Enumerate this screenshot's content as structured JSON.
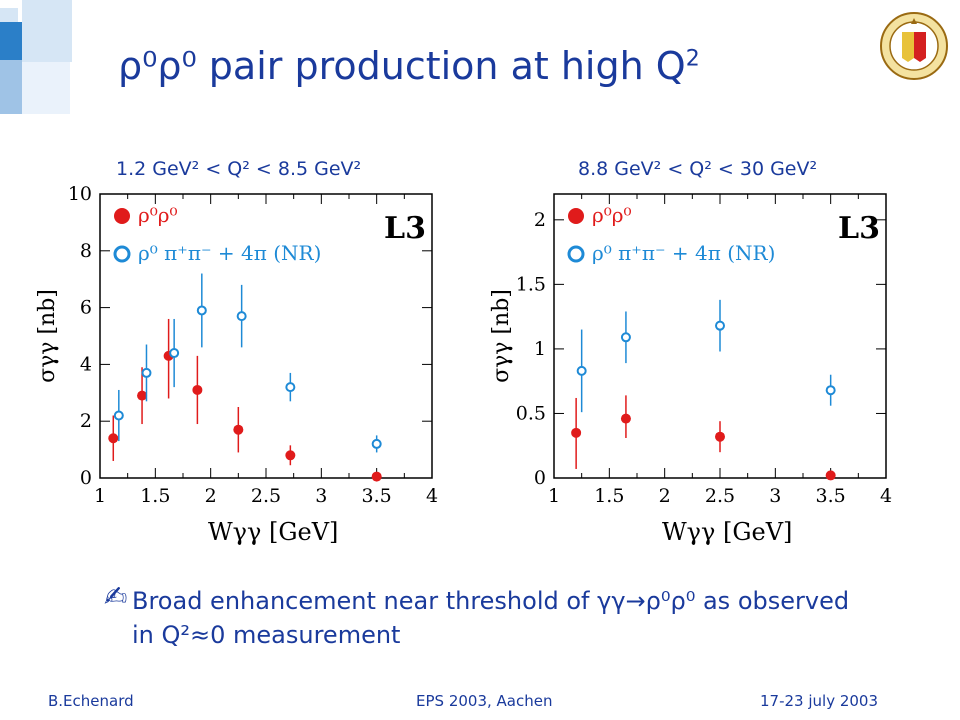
{
  "title": {
    "main": "ρ⁰ρ⁰ pair production at high Q",
    "sup": "2"
  },
  "panels": [
    {
      "range_label": "1.2 GeV² < Q² < 8.5 GeV²"
    },
    {
      "range_label": "8.8 GeV² < Q² < 30 GeV²"
    }
  ],
  "bullet": {
    "text": "Broad enhancement near threshold of γγ→ρ⁰ρ⁰ as observed in Q²≈0 measurement"
  },
  "footer": {
    "left": "B.Echenard",
    "center": "EPS 2003, Aachen",
    "right": "17-23 july 2003"
  },
  "colors": {
    "title": "#1a3a9c",
    "rho_rho": "#e01b1b",
    "rho_pipi": "#1e8ad6",
    "deco": [
      "#2b7fc8",
      "#9fc3e6",
      "#d6e6f5"
    ]
  },
  "icons": {
    "bullet": "pencil-icon",
    "logo": "university-seal-icon"
  },
  "chart_data": [
    {
      "type": "scatter",
      "experiment": "L3",
      "xlabel": "Wγγ [GeV]",
      "ylabel": "σγγ [nb]",
      "xlim": [
        1,
        4
      ],
      "ylim": [
        0,
        10
      ],
      "xticks": [
        "1",
        "1.5",
        "2",
        "2.5",
        "3",
        "3.5",
        "4"
      ],
      "xtick_values": [
        1,
        1.5,
        2,
        2.5,
        3,
        3.5,
        4
      ],
      "yticks": [
        "0",
        "2",
        "4",
        "6",
        "8",
        "10"
      ],
      "ytick_values": [
        0,
        2,
        4,
        6,
        8,
        10
      ],
      "series": [
        {
          "name": "ρ⁰ρ⁰",
          "marker": "filled",
          "color": "#e01b1b",
          "x": [
            1.12,
            1.38,
            1.62,
            1.88,
            2.25,
            2.72,
            3.5
          ],
          "y": [
            1.4,
            2.9,
            4.3,
            3.1,
            1.7,
            0.8,
            0.05
          ],
          "err_low": [
            0.8,
            1.0,
            1.5,
            1.2,
            0.8,
            0.35,
            0.05
          ],
          "err_high": [
            0.8,
            1.0,
            1.3,
            1.2,
            0.8,
            0.35,
            0.1
          ]
        },
        {
          "name": "ρ⁰ π⁺π⁻ + 4π (NR)",
          "marker": "open",
          "color": "#1e8ad6",
          "x": [
            1.17,
            1.42,
            1.67,
            1.92,
            2.28,
            2.72,
            3.5
          ],
          "y": [
            2.2,
            3.7,
            4.4,
            5.9,
            5.7,
            3.2,
            1.2
          ],
          "err_low": [
            0.9,
            1.0,
            1.2,
            1.3,
            1.1,
            0.5,
            0.3
          ],
          "err_high": [
            0.9,
            1.0,
            1.2,
            1.3,
            1.1,
            0.5,
            0.3
          ]
        }
      ]
    },
    {
      "type": "scatter",
      "experiment": "L3",
      "xlabel": "Wγγ [GeV]",
      "ylabel": "σγγ [nb]",
      "xlim": [
        1,
        4
      ],
      "ylim": [
        0,
        2.2
      ],
      "xticks": [
        "1",
        "1.5",
        "2",
        "2.5",
        "3",
        "3.5",
        "4"
      ],
      "xtick_values": [
        1,
        1.5,
        2,
        2.5,
        3,
        3.5,
        4
      ],
      "yticks": [
        "0",
        "0.5",
        "1",
        "1.5",
        "2"
      ],
      "ytick_values": [
        0,
        0.5,
        1,
        1.5,
        2
      ],
      "series": [
        {
          "name": "ρ⁰ρ⁰",
          "marker": "filled",
          "color": "#e01b1b",
          "x": [
            1.2,
            1.65,
            2.5,
            3.5
          ],
          "y": [
            0.35,
            0.46,
            0.32,
            0.02
          ],
          "err_low": [
            0.28,
            0.15,
            0.12,
            0.02
          ],
          "err_high": [
            0.27,
            0.18,
            0.12,
            0.02
          ]
        },
        {
          "name": "ρ⁰ π⁺π⁻ + 4π (NR)",
          "marker": "open",
          "color": "#1e8ad6",
          "x": [
            1.25,
            1.65,
            2.5,
            3.5
          ],
          "y": [
            0.83,
            1.09,
            1.18,
            0.68
          ],
          "err_low": [
            0.32,
            0.2,
            0.2,
            0.12
          ],
          "err_high": [
            0.32,
            0.2,
            0.2,
            0.12
          ]
        }
      ]
    }
  ]
}
